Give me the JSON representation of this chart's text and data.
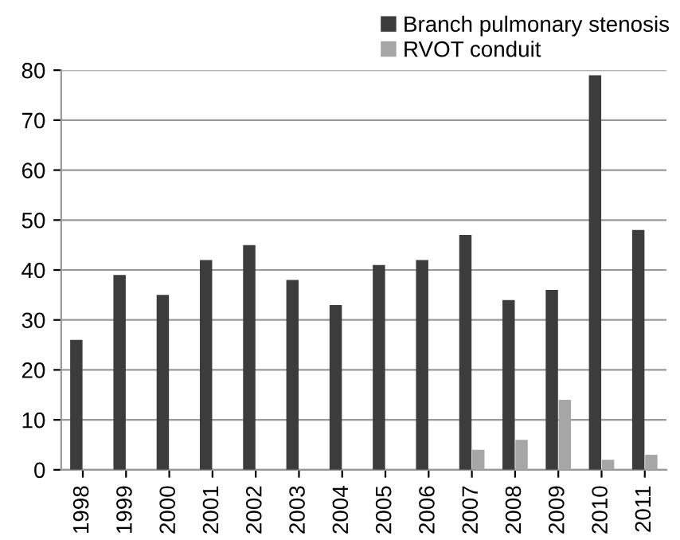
{
  "chart_data": {
    "type": "bar",
    "categories": [
      "1998",
      "1999",
      "2000",
      "2001",
      "2002",
      "2003",
      "2004",
      "2005",
      "2006",
      "2007",
      "2008",
      "2009",
      "2010",
      "2011"
    ],
    "series": [
      {
        "name": "Branch pulmonary stenosis",
        "color": "#3c3c3c",
        "values": [
          26,
          39,
          35,
          42,
          45,
          38,
          33,
          41,
          42,
          47,
          34,
          36,
          79,
          48
        ]
      },
      {
        "name": "RVOT conduit",
        "color": "#a6a6a6",
        "values": [
          null,
          null,
          null,
          null,
          null,
          null,
          null,
          null,
          null,
          4,
          6,
          14,
          2,
          3
        ]
      }
    ],
    "ylim": [
      0,
      80
    ],
    "yticks": [
      0,
      10,
      20,
      30,
      40,
      50,
      60,
      70,
      80
    ],
    "grid": "y",
    "legend": "top right"
  }
}
